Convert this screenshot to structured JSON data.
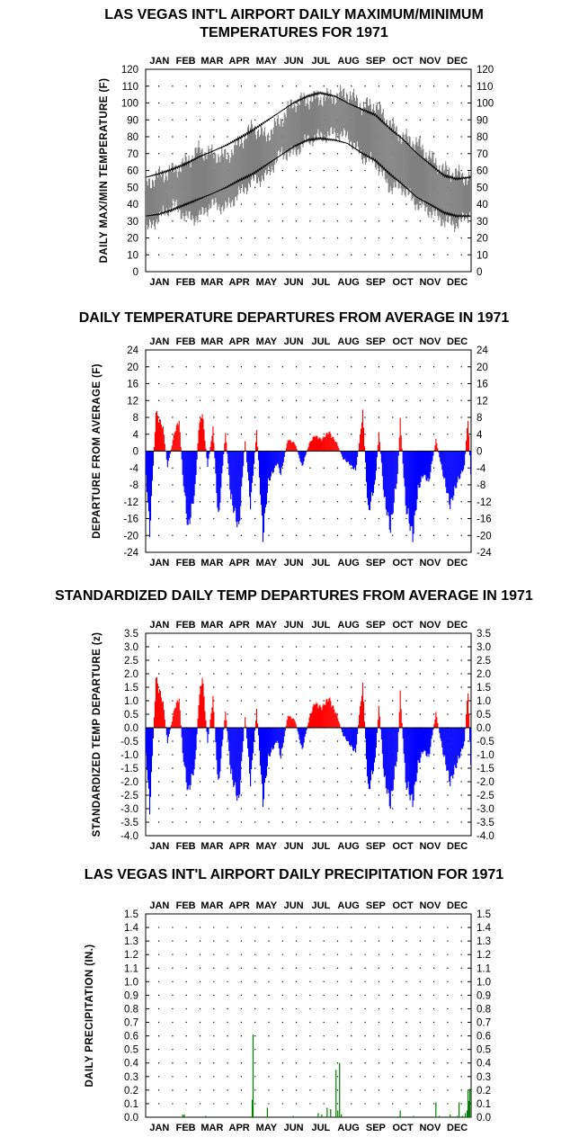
{
  "months": [
    "JAN",
    "FEB",
    "MAR",
    "APR",
    "MAY",
    "JUN",
    "JUL",
    "AUG",
    "SEP",
    "OCT",
    "NOV",
    "DEC"
  ],
  "colors": {
    "positive": "#ff0000",
    "negative": "#0000ff",
    "temp_band": "#808080",
    "precip": "#008000"
  },
  "chart_data": [
    {
      "type": "area",
      "title_line1": "LAS VEGAS INT'L AIRPORT DAILY MAXIMUM/MINIMUM",
      "title_line2": "TEMPERATURES FOR 1971",
      "xlabel": "",
      "ylabel": "DAILY MAX/MIN TEMPERATURE (F)",
      "ylim": [
        0,
        120
      ],
      "yticks": [
        0,
        10,
        20,
        30,
        40,
        50,
        60,
        70,
        80,
        90,
        100,
        110,
        120
      ],
      "x_anchor_days": [
        1,
        15,
        32,
        46,
        60,
        74,
        91,
        105,
        121,
        135,
        152,
        166,
        182,
        196,
        213,
        227,
        244,
        258,
        274,
        288,
        305,
        319,
        335,
        349,
        365
      ],
      "max_anchor_values": [
        52,
        57,
        60,
        65,
        72,
        70,
        68,
        76,
        86,
        80,
        90,
        100,
        102,
        103,
        104,
        106,
        98,
        99,
        88,
        80,
        76,
        68,
        60,
        58,
        55
      ],
      "min_anchor_values": [
        24,
        32,
        40,
        32,
        32,
        40,
        38,
        46,
        54,
        56,
        70,
        70,
        78,
        80,
        82,
        80,
        68,
        65,
        50,
        50,
        40,
        36,
        30,
        28,
        35
      ],
      "normal_max_anchor_values": [
        56,
        58,
        61,
        64,
        68,
        71,
        75,
        79,
        84,
        89,
        95,
        100,
        104,
        106,
        104,
        100,
        96,
        93,
        85,
        79,
        70,
        64,
        57,
        55,
        56
      ],
      "normal_min_anchor_values": [
        33,
        34,
        37,
        40,
        43,
        46,
        50,
        54,
        58,
        63,
        69,
        74,
        78,
        79,
        78,
        76,
        70,
        66,
        58,
        52,
        44,
        40,
        35,
        33,
        33
      ],
      "grid": "dotted"
    },
    {
      "type": "bar",
      "title": "DAILY TEMPERATURE DEPARTURES FROM AVERAGE IN 1971",
      "xlabel": "",
      "ylabel": "DEPARTURE FROM AVERAGE (F)",
      "ylim": [
        -24,
        24
      ],
      "yticks": [
        -24,
        -20,
        -16,
        -12,
        -8,
        -4,
        0,
        4,
        8,
        12,
        16,
        20,
        24
      ],
      "x_anchor_days": [
        1,
        5,
        8,
        12,
        20,
        25,
        33,
        38,
        42,
        48,
        56,
        60,
        64,
        70,
        76,
        82,
        90,
        96,
        105,
        112,
        118,
        125,
        132,
        138,
        148,
        152,
        160,
        168,
        176,
        184,
        190,
        198,
        206,
        215,
        222,
        228,
        236,
        240,
        244,
        250,
        258,
        262,
        268,
        275,
        283,
        286,
        292,
        300,
        306,
        312,
        318,
        326,
        334,
        342,
        350,
        358,
        362,
        365
      ],
      "anchor_values": [
        -6,
        -21,
        -8,
        10,
        6,
        -4,
        5,
        8,
        -6,
        -20,
        -10,
        6,
        10,
        -4,
        6,
        -18,
        5,
        -12,
        -20,
        3,
        -14,
        5,
        -22,
        -8,
        -3,
        -6,
        3,
        2,
        -4,
        2,
        4,
        3,
        5,
        2,
        -2,
        -3,
        -5,
        2,
        10,
        -16,
        -8,
        5,
        -12,
        -20,
        -6,
        8,
        -14,
        -22,
        -10,
        -6,
        -8,
        3,
        -6,
        -14,
        -8,
        -4,
        9,
        -6
      ],
      "grid": "dotted"
    },
    {
      "type": "bar",
      "title": "STANDARDIZED DAILY TEMP DEPARTURES FROM AVERAGE IN 1971",
      "xlabel": "",
      "ylabel": "STANDARDIZED TEMP DEPARTURE (z)",
      "ylim": [
        -4.0,
        3.5
      ],
      "yticks": [
        -4.0,
        -3.5,
        -3.0,
        -2.5,
        -2.0,
        -1.5,
        -1.0,
        -0.5,
        0.0,
        0.5,
        1.0,
        1.5,
        2.0,
        2.5,
        3.0,
        3.5
      ],
      "ytick_labels": [
        "-4.0",
        "-3.5",
        "-3.0",
        "-2.5",
        "-2.0",
        "-1.5",
        "-1.0",
        "-0.5",
        "0.0",
        "0.5",
        "1.0",
        "1.5",
        "2.0",
        "2.5",
        "3.0",
        "3.5"
      ],
      "x_anchor_days": [
        1,
        5,
        8,
        12,
        20,
        25,
        33,
        38,
        42,
        48,
        56,
        60,
        64,
        70,
        76,
        82,
        90,
        96,
        105,
        112,
        118,
        125,
        132,
        138,
        148,
        152,
        160,
        168,
        176,
        184,
        190,
        198,
        206,
        215,
        222,
        228,
        236,
        240,
        244,
        250,
        258,
        262,
        268,
        275,
        283,
        286,
        292,
        300,
        306,
        312,
        318,
        326,
        334,
        342,
        350,
        358,
        362,
        365
      ],
      "anchor_values": [
        -1.0,
        -3.3,
        -1.2,
        2.0,
        1.0,
        -0.6,
        0.8,
        1.2,
        -1.0,
        -2.6,
        -1.5,
        1.0,
        2.1,
        -0.6,
        1.2,
        -2.4,
        0.7,
        -1.8,
        -3.0,
        0.5,
        -2.2,
        0.7,
        -3.0,
        -1.2,
        -0.5,
        -1.2,
        0.5,
        0.3,
        -0.9,
        0.4,
        1.0,
        0.8,
        1.2,
        0.5,
        -0.3,
        -0.6,
        -1.0,
        0.5,
        1.7,
        -2.6,
        -1.3,
        0.9,
        -2.0,
        -3.1,
        -1.0,
        1.4,
        -2.2,
        -3.0,
        -1.5,
        -0.9,
        -1.2,
        0.6,
        -1.0,
        -2.2,
        -1.4,
        -0.6,
        1.6,
        -1.5
      ],
      "grid": "dotted"
    },
    {
      "type": "bar",
      "title": "LAS VEGAS INT'L AIRPORT DAILY PRECIPITATION FOR 1971",
      "xlabel": "",
      "ylabel": "DAILY PRECIPITATION (IN.)",
      "ylim": [
        0,
        1.5
      ],
      "yticks": [
        0,
        0.1,
        0.2,
        0.3,
        0.4,
        0.5,
        0.6,
        0.7,
        0.8,
        0.9,
        1.0,
        1.1,
        1.2,
        1.3,
        1.4,
        1.5
      ],
      "ytick_labels": [
        "0.0",
        "0.1",
        "0.2",
        "0.3",
        "0.4",
        "0.5",
        "0.6",
        "0.7",
        "0.8",
        "0.9",
        "1.0",
        "1.1",
        "1.2",
        "1.3",
        "1.4",
        "1.5"
      ],
      "days": [
        42,
        43,
        44,
        68,
        120,
        121,
        137,
        166,
        194,
        198,
        204,
        208,
        214,
        216,
        218,
        220,
        286,
        301,
        326,
        330,
        342,
        350,
        352,
        356,
        359,
        361,
        362,
        363,
        364
      ],
      "values": [
        0.02,
        0.01,
        0.02,
        0.01,
        0.13,
        0.61,
        0.07,
        0.01,
        0.03,
        0.02,
        0.07,
        0.06,
        0.35,
        0.05,
        0.4,
        0.02,
        0.05,
        0.01,
        0.11,
        0.01,
        0.02,
        0.01,
        0.11,
        0.01,
        0.03,
        0.05,
        0.2,
        0.12,
        0.21
      ],
      "grid": "dotted"
    }
  ]
}
